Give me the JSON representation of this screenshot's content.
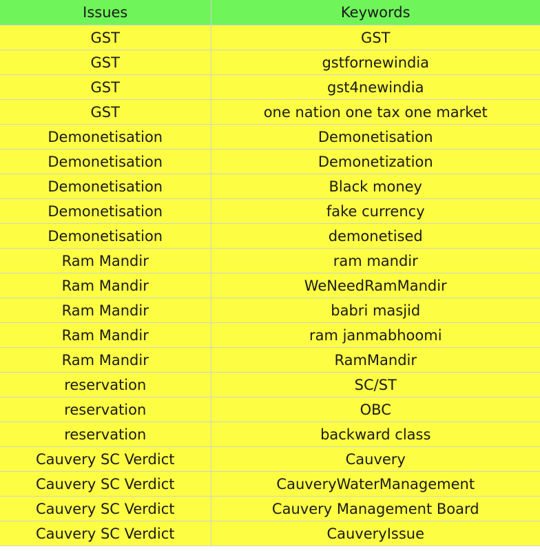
{
  "columns": [
    "Issues",
    "Keywords"
  ],
  "colors": {
    "header_bg": "#6ff55a",
    "cell_bg": "#fdfd44",
    "grid_line": "#cfd3cf"
  },
  "rows": [
    [
      "GST",
      "GST"
    ],
    [
      "GST",
      "gstfornewindia"
    ],
    [
      "GST",
      "gst4newindia"
    ],
    [
      "GST",
      "one nation one tax one market"
    ],
    [
      "Demonetisation",
      "Demonetisation"
    ],
    [
      "Demonetisation",
      "Demonetization"
    ],
    [
      "Demonetisation",
      "Black money"
    ],
    [
      "Demonetisation",
      "fake currency"
    ],
    [
      "Demonetisation",
      "demonetised"
    ],
    [
      "Ram Mandir",
      "ram mandir"
    ],
    [
      "Ram Mandir",
      "WeNeedRamMandir"
    ],
    [
      "Ram Mandir",
      "babri masjid"
    ],
    [
      "Ram Mandir",
      "ram janmabhoomi"
    ],
    [
      "Ram Mandir",
      "RamMandir"
    ],
    [
      "reservation",
      "SC/ST"
    ],
    [
      "reservation",
      "OBC"
    ],
    [
      "reservation",
      "backward class"
    ],
    [
      "Cauvery SC Verdict",
      "Cauvery"
    ],
    [
      "Cauvery SC Verdict",
      "CauveryWaterManagement"
    ],
    [
      "Cauvery SC Verdict",
      "Cauvery Management Board"
    ],
    [
      "Cauvery SC Verdict",
      "CauveryIssue"
    ]
  ]
}
